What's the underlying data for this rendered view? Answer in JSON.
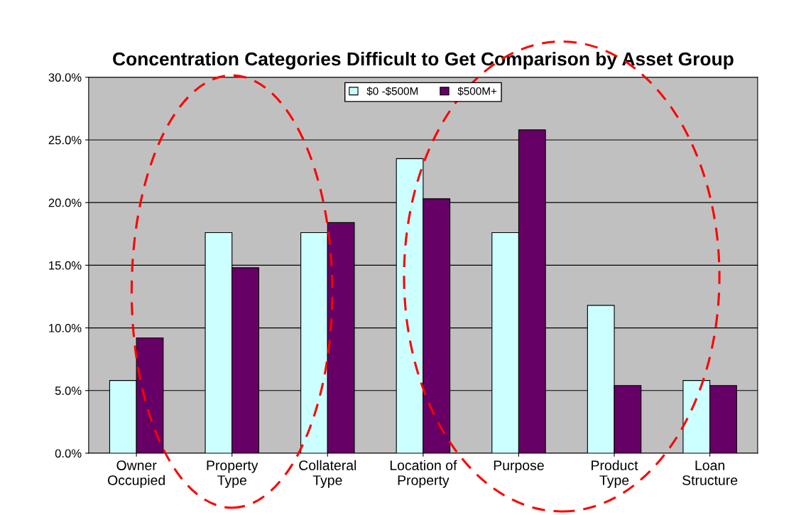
{
  "chart_data": {
    "type": "bar",
    "title": "Concentration Categories Difficult to Get Comparison by Asset Group",
    "categories": [
      "Owner\nOccupied",
      "Property\nType",
      "Collateral\nType",
      "Location of\nProperty",
      "Purpose",
      "Product\nType",
      "Loan\nStructure"
    ],
    "series": [
      {
        "name": "$0 -$500M",
        "color": "#ccffff",
        "values": [
          5.8,
          17.6,
          17.6,
          23.5,
          17.6,
          11.8,
          5.8
        ]
      },
      {
        "name": "$500M+",
        "color": "#660066",
        "values": [
          9.2,
          14.8,
          18.4,
          20.3,
          25.8,
          5.4,
          5.4
        ]
      }
    ],
    "ylim": [
      0,
      30
    ],
    "yticks": [
      {
        "value": 0,
        "label": "0.0%"
      },
      {
        "value": 5,
        "label": "5.0%"
      },
      {
        "value": 10,
        "label": "10.0%"
      },
      {
        "value": 15,
        "label": "15.0%"
      },
      {
        "value": 20,
        "label": "20.0%"
      },
      {
        "value": 25,
        "label": "25.0%"
      },
      {
        "value": 30,
        "label": "30.0%"
      }
    ],
    "grid": "y",
    "legend": "top"
  }
}
